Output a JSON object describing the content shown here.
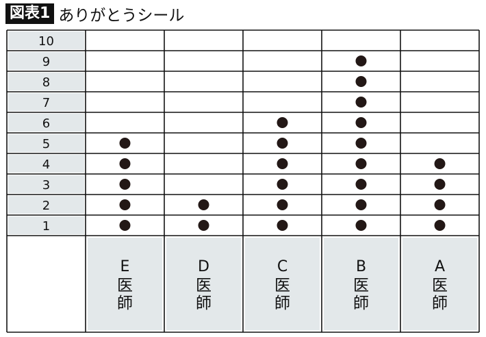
{
  "title": {
    "badge": "図表1",
    "text": "ありがとうシール"
  },
  "chart_data": {
    "type": "scatter",
    "categories": [
      "E医師",
      "D医師",
      "C医師",
      "B医師",
      "A医師"
    ],
    "category_letters": [
      "E",
      "D",
      "C",
      "B",
      "A"
    ],
    "category_suffix": "医師",
    "values": [
      5,
      2,
      6,
      9,
      4
    ],
    "y_ticks": [
      1,
      2,
      3,
      4,
      5,
      6,
      7,
      8,
      9,
      10
    ],
    "ylim": [
      1,
      10
    ],
    "grid": true,
    "colors": {
      "dot": "#231816",
      "label_bg": "#e3e8ea",
      "line": "#111111"
    }
  }
}
